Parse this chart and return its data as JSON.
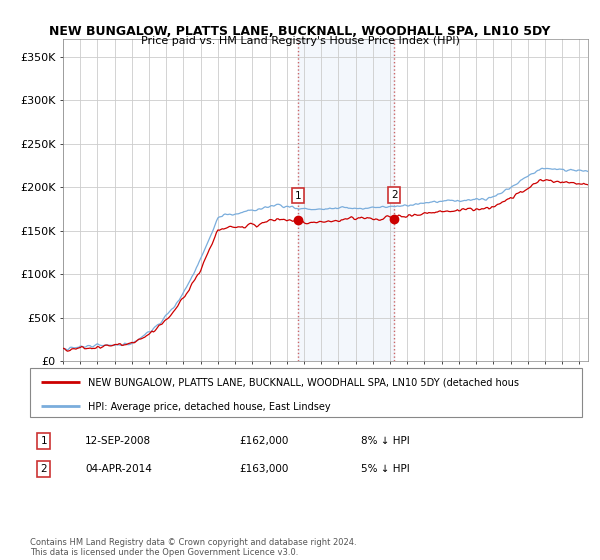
{
  "title": "NEW BUNGALOW, PLATTS LANE, BUCKNALL, WOODHALL SPA, LN10 5DY",
  "subtitle": "Price paid vs. HM Land Registry's House Price Index (HPI)",
  "ylabel_ticks": [
    "£0",
    "£50K",
    "£100K",
    "£150K",
    "£200K",
    "£250K",
    "£300K",
    "£350K"
  ],
  "ytick_values": [
    0,
    50000,
    100000,
    150000,
    200000,
    250000,
    300000,
    350000
  ],
  "ylim": [
    0,
    370000
  ],
  "legend_line1": "NEW BUNGALOW, PLATTS LANE, BUCKNALL, WOODHALL SPA, LN10 5DY (detached hous",
  "legend_line2": "HPI: Average price, detached house, East Lindsey",
  "marker1_date": "12-SEP-2008",
  "marker1_price": 162000,
  "marker1_hpi": "8% ↓ HPI",
  "marker2_date": "04-APR-2014",
  "marker2_price": 163000,
  "marker2_hpi": "5% ↓ HPI",
  "footnote": "Contains HM Land Registry data © Crown copyright and database right 2024.\nThis data is licensed under the Open Government Licence v3.0.",
  "red_color": "#cc0000",
  "blue_color": "#7aaddc",
  "highlight_color": "#ddeeff",
  "marker_box_color": "#cc3333",
  "sale1_year": 2008.7,
  "sale2_year": 2014.25,
  "start_year": 1995,
  "end_year": 2025.5
}
